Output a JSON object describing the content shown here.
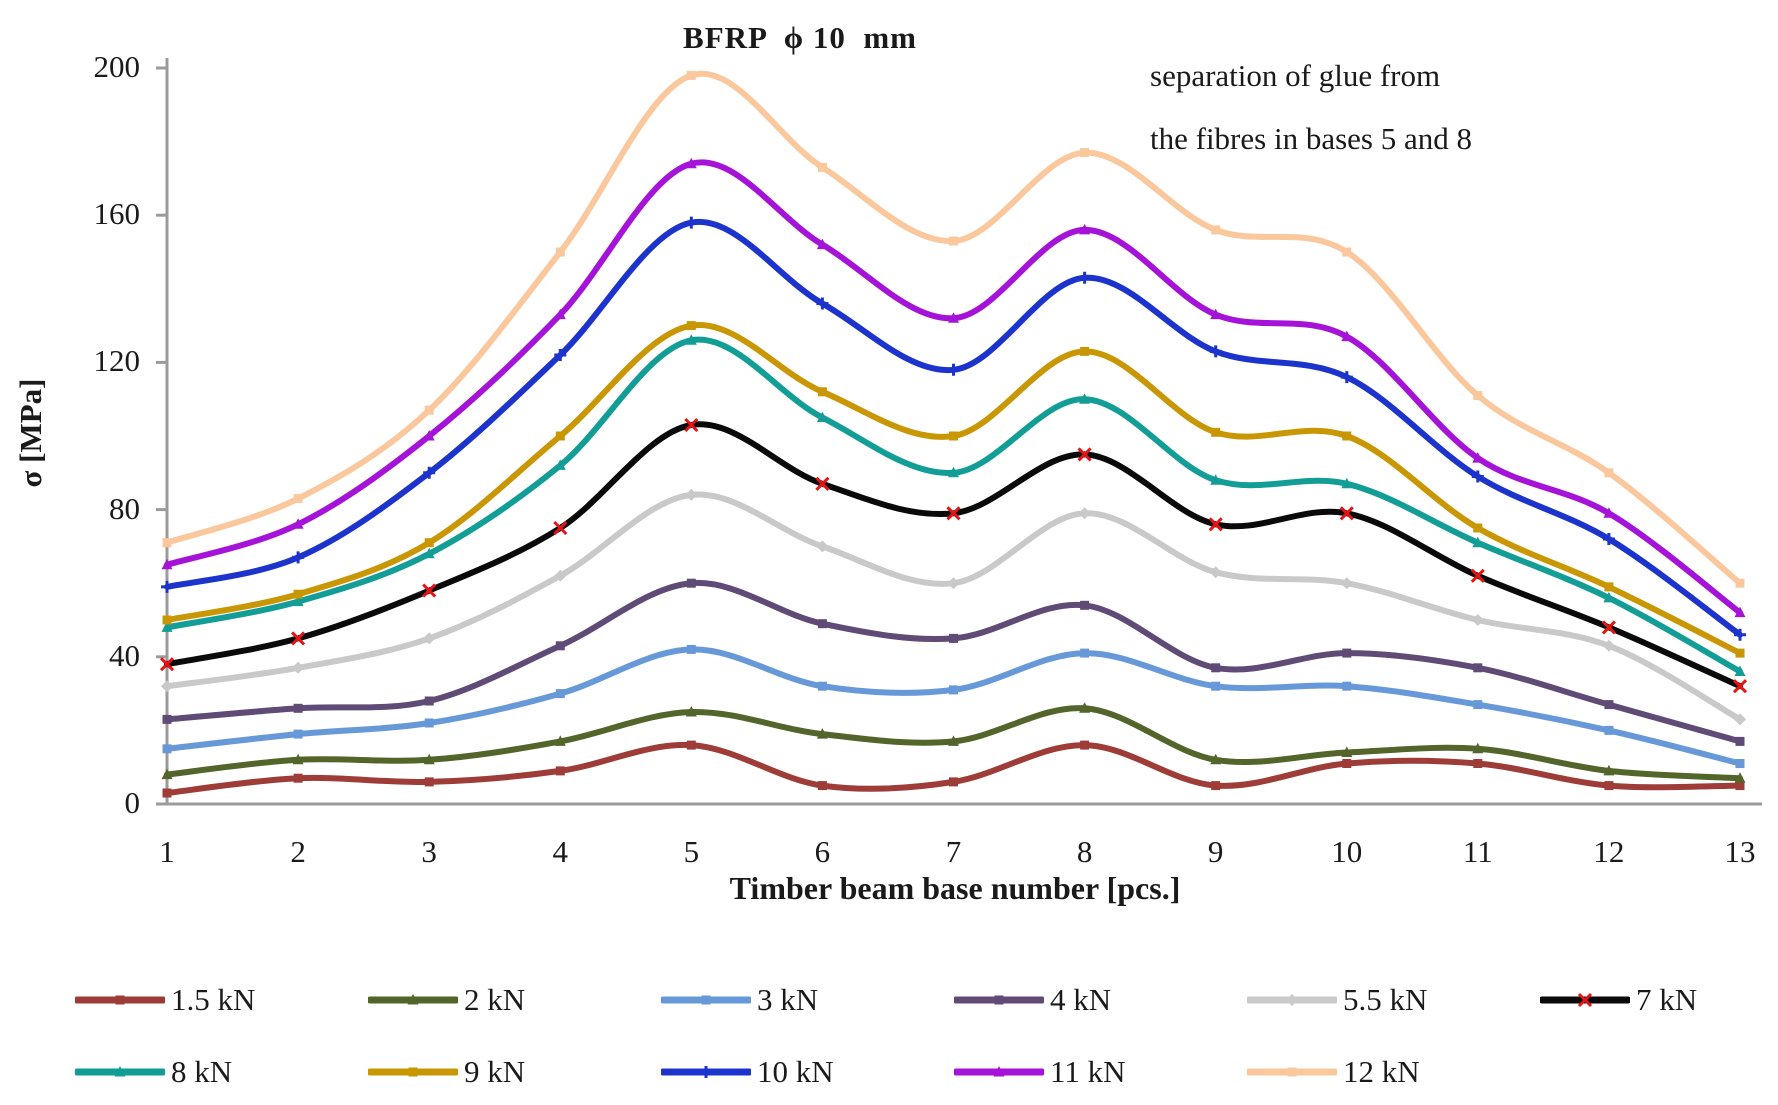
{
  "chart": {
    "title": "BFRP  ϕ 10  mm",
    "annotation_line1": "separation of glue from",
    "annotation_line2": "the fibres in bases 5 and 8",
    "ylabel": "σ [MPa]",
    "xlabel": "Timber beam base number [pcs.]"
  },
  "chart_data": {
    "type": "line",
    "title": "BFRP ϕ 10 mm",
    "xlabel": "Timber beam base number [pcs.]",
    "ylabel": "σ [MPa]",
    "annotation": "separation of glue from the fibres in bases 5 and 8",
    "x": [
      1,
      2,
      3,
      4,
      5,
      6,
      7,
      8,
      9,
      10,
      11,
      12,
      13
    ],
    "ylim": [
      0,
      200
    ],
    "yticks": [
      0,
      40,
      80,
      120,
      160,
      200
    ],
    "grid": false,
    "smooth_lines": true,
    "legend_position": "bottom",
    "axis_color": "#9b9b9b",
    "series": [
      {
        "name": "1.5 kN",
        "color": "#9e3c38",
        "marker": "square",
        "marker_color": "#9e3c38",
        "values": [
          3,
          7,
          6,
          9,
          16,
          5,
          6,
          16,
          5,
          11,
          11,
          5,
          5
        ]
      },
      {
        "name": "2 kN",
        "color": "#53652a",
        "marker": "triangle",
        "marker_color": "#53652a",
        "values": [
          8,
          12,
          12,
          17,
          25,
          19,
          17,
          26,
          12,
          14,
          15,
          9,
          7
        ]
      },
      {
        "name": "3 kN",
        "color": "#6799d9",
        "marker": "square",
        "marker_color": "#6799d9",
        "values": [
          15,
          19,
          22,
          30,
          42,
          32,
          31,
          41,
          32,
          32,
          27,
          20,
          11
        ]
      },
      {
        "name": "4 kN",
        "color": "#5f4b76",
        "marker": "square",
        "marker_color": "#5f4b76",
        "values": [
          23,
          26,
          28,
          43,
          60,
          49,
          45,
          54,
          37,
          41,
          37,
          27,
          17
        ]
      },
      {
        "name": "5.5 kN",
        "color": "#c9c9c9",
        "marker": "diamond",
        "marker_color": "#c9c9c9",
        "values": [
          32,
          37,
          45,
          62,
          84,
          70,
          60,
          79,
          63,
          60,
          50,
          43,
          23
        ]
      },
      {
        "name": "7 kN",
        "color": "#0a0a0a",
        "marker": "x",
        "marker_color": "#e41414",
        "values": [
          38,
          45,
          58,
          75,
          103,
          87,
          79,
          95,
          76,
          79,
          62,
          48,
          32
        ]
      },
      {
        "name": "8 kN",
        "color": "#129e96",
        "marker": "triangle",
        "marker_color": "#129e96",
        "values": [
          48,
          55,
          68,
          92,
          126,
          105,
          90,
          110,
          88,
          87,
          71,
          56,
          36
        ]
      },
      {
        "name": "9 kN",
        "color": "#c99704",
        "marker": "square",
        "marker_color": "#c99704",
        "values": [
          50,
          57,
          71,
          100,
          130,
          112,
          100,
          123,
          101,
          100,
          75,
          59,
          41
        ]
      },
      {
        "name": "10 kN",
        "color": "#1c34cc",
        "marker": "plus",
        "marker_color": "#1c34cc",
        "values": [
          59,
          67,
          90,
          122,
          158,
          136,
          118,
          143,
          123,
          116,
          89,
          72,
          46
        ]
      },
      {
        "name": "11 kN",
        "color": "#a513d8",
        "marker": "triangle",
        "marker_color": "#a513d8",
        "values": [
          65,
          76,
          100,
          133,
          174,
          152,
          132,
          156,
          133,
          127,
          94,
          79,
          52
        ]
      },
      {
        "name": "12 kN",
        "color": "#fac89c",
        "marker": "square",
        "marker_color": "#fac89c",
        "values": [
          71,
          83,
          107,
          150,
          198,
          173,
          153,
          177,
          156,
          150,
          111,
          90,
          60
        ]
      }
    ]
  }
}
